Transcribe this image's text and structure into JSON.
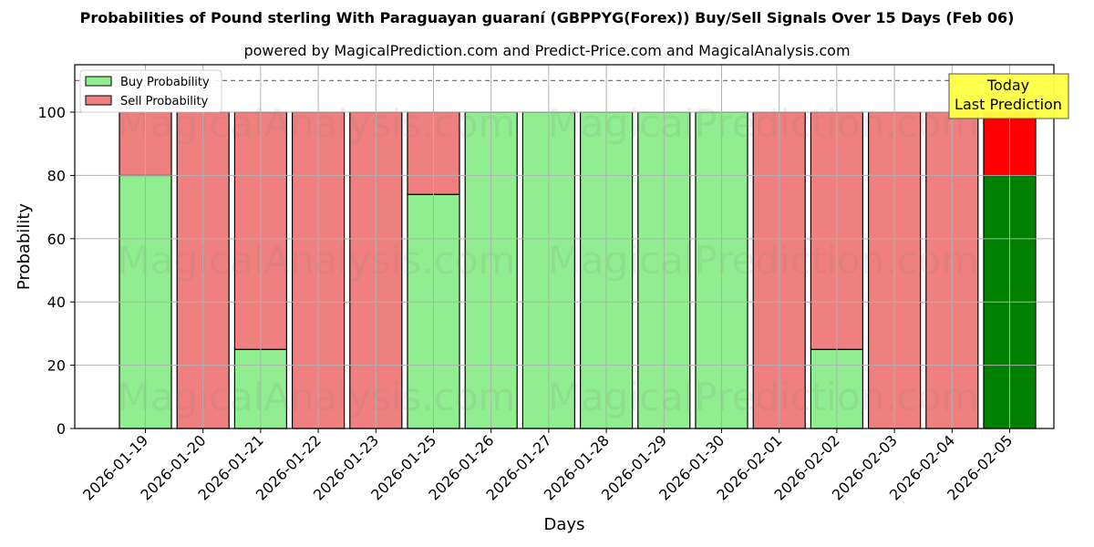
{
  "chart_data": {
    "type": "bar",
    "stacked": true,
    "title": "Probabilities of Pound sterling With Paraguayan guaraní (GBPPYG(Forex)) Buy/Sell Signals Over 15 Days (Feb 06)",
    "subtitle": "powered by MagicalPrediction.com and Predict-Price.com and MagicalAnalysis.com",
    "xlabel": "Days",
    "ylabel": "Probability",
    "ylim": [
      0,
      115
    ],
    "yticks": [
      0,
      20,
      40,
      60,
      80,
      100
    ],
    "grid": true,
    "reference_line": 110,
    "legend_position": "upper left",
    "categories": [
      "2026-01-19",
      "2026-01-20",
      "2026-01-21",
      "2026-01-22",
      "2026-01-23",
      "2026-01-25",
      "2026-01-26",
      "2026-01-27",
      "2026-01-28",
      "2026-01-29",
      "2026-01-30",
      "2026-02-01",
      "2026-02-02",
      "2026-02-03",
      "2026-02-04",
      "2026-02-05"
    ],
    "series": [
      {
        "name": "Buy Probability",
        "color": "#90ee90",
        "values": [
          80,
          0,
          25,
          0,
          0,
          74,
          100,
          100,
          100,
          100,
          100,
          0,
          25,
          0,
          0,
          80
        ]
      },
      {
        "name": "Sell Probability",
        "color": "#f08080",
        "values": [
          20,
          100,
          75,
          100,
          100,
          26,
          0,
          0,
          0,
          0,
          0,
          100,
          75,
          100,
          100,
          20
        ]
      }
    ],
    "highlight": {
      "index": 15,
      "buy_color": "#008000",
      "sell_color": "#ff0000"
    },
    "annotation": {
      "text_line1": "Today",
      "text_line2": "Last Prediction",
      "bg_color": "#ffff44"
    },
    "watermarks": [
      "MagicalAnalysis.com",
      "MagicalPrediction.com"
    ]
  }
}
